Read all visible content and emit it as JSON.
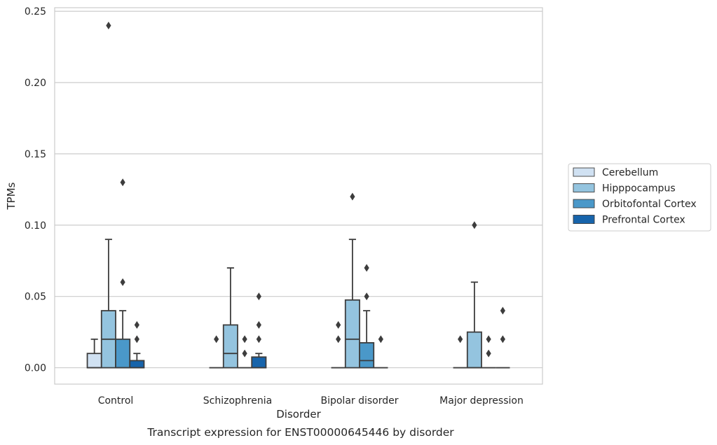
{
  "chart_data": {
    "type": "box",
    "title": "Transcript expression for ENST00000645446 by disorder",
    "xlabel": "Disorder",
    "ylabel": "TPMs",
    "ylim": [
      -0.0115,
      0.2525
    ],
    "yticks": [
      "0.00",
      "0.05",
      "0.10",
      "0.15",
      "0.20",
      "0.25"
    ],
    "grid": "horizontal",
    "legend_position": "right",
    "categories": [
      "Control",
      "Schizophrenia",
      "Bipolar disorder",
      "Major depression"
    ],
    "series": [
      {
        "name": "Cerebellum",
        "color": "#d0e1f2",
        "boxes": [
          {
            "q1": 0.0,
            "median": 0.0,
            "q3": 0.01,
            "whisker_low": 0.0,
            "whisker_high": 0.02,
            "outliers": []
          },
          {
            "q1": 0.0,
            "median": 0.0,
            "q3": 0.0,
            "whisker_low": 0.0,
            "whisker_high": 0.0,
            "outliers": [
              0.02
            ]
          },
          {
            "q1": 0.0,
            "median": 0.0,
            "q3": 0.0,
            "whisker_low": 0.0,
            "whisker_high": 0.0,
            "outliers": [
              0.02,
              0.03
            ]
          },
          {
            "q1": 0.0,
            "median": 0.0,
            "q3": 0.0,
            "whisker_low": 0.0,
            "whisker_high": 0.0,
            "outliers": [
              0.02
            ]
          }
        ]
      },
      {
        "name": "Hipppocampus",
        "color": "#94c4df",
        "boxes": [
          {
            "q1": 0.0,
            "median": 0.02,
            "q3": 0.04,
            "whisker_low": 0.0,
            "whisker_high": 0.09,
            "outliers": [
              0.24
            ]
          },
          {
            "q1": 0.0,
            "median": 0.01,
            "q3": 0.03,
            "whisker_low": 0.0,
            "whisker_high": 0.07,
            "outliers": []
          },
          {
            "q1": 0.0,
            "median": 0.02,
            "q3": 0.0475,
            "whisker_low": 0.0,
            "whisker_high": 0.09,
            "outliers": [
              0.12
            ]
          },
          {
            "q1": 0.0,
            "median": 0.0,
            "q3": 0.025,
            "whisker_low": 0.0,
            "whisker_high": 0.06,
            "outliers": [
              0.1
            ]
          }
        ]
      },
      {
        "name": "Orbitofontal Cortex",
        "color": "#4a98c9",
        "boxes": [
          {
            "q1": 0.0,
            "median": 0.0,
            "q3": 0.02,
            "whisker_low": 0.0,
            "whisker_high": 0.04,
            "outliers": [
              0.06,
              0.13
            ]
          },
          {
            "q1": 0.0,
            "median": 0.0,
            "q3": 0.0,
            "whisker_low": 0.0,
            "whisker_high": 0.0,
            "outliers": [
              0.01,
              0.02
            ]
          },
          {
            "q1": 0.0,
            "median": 0.005,
            "q3": 0.0175,
            "whisker_low": 0.0,
            "whisker_high": 0.04,
            "outliers": [
              0.05,
              0.07
            ]
          },
          {
            "q1": 0.0,
            "median": 0.0,
            "q3": 0.0,
            "whisker_low": 0.0,
            "whisker_high": 0.0,
            "outliers": [
              0.01,
              0.02
            ]
          }
        ]
      },
      {
        "name": "Prefrontal Cortex",
        "color": "#1764ab",
        "boxes": [
          {
            "q1": 0.0,
            "median": 0.0,
            "q3": 0.005,
            "whisker_low": 0.0,
            "whisker_high": 0.01,
            "outliers": [
              0.02,
              0.03
            ]
          },
          {
            "q1": 0.0,
            "median": 0.0,
            "q3": 0.0075,
            "whisker_low": 0.0,
            "whisker_high": 0.01,
            "outliers": [
              0.02,
              0.03,
              0.05
            ]
          },
          {
            "q1": 0.0,
            "median": 0.0,
            "q3": 0.0,
            "whisker_low": 0.0,
            "whisker_high": 0.0,
            "outliers": [
              0.02
            ]
          },
          {
            "q1": 0.0,
            "median": 0.0,
            "q3": 0.0,
            "whisker_low": 0.0,
            "whisker_high": 0.0,
            "outliers": [
              0.02,
              0.04
            ]
          }
        ]
      }
    ]
  }
}
